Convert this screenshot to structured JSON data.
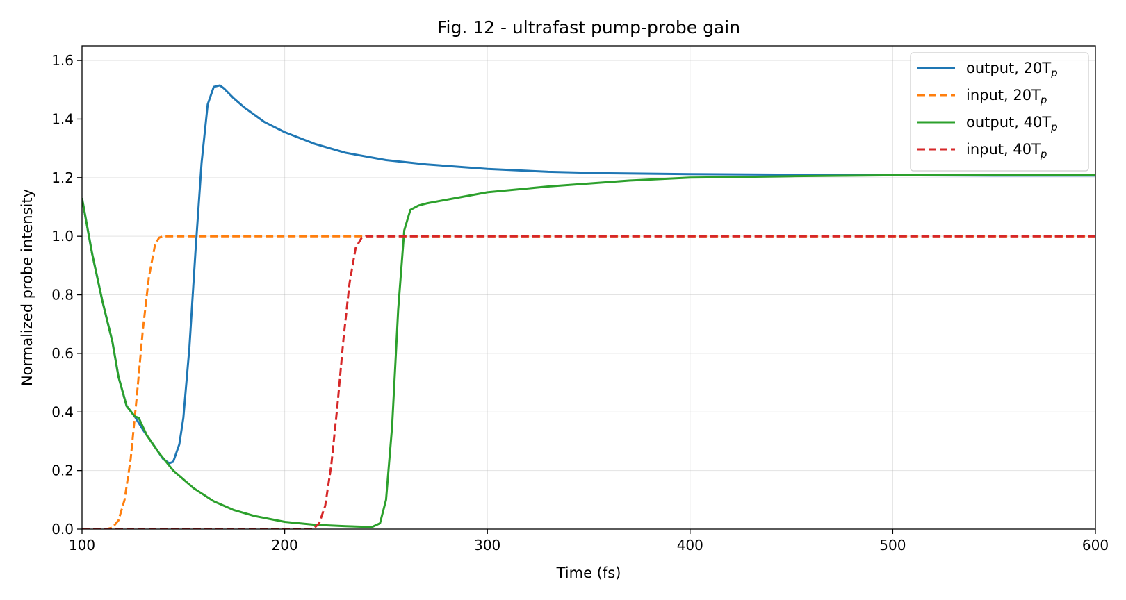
{
  "chart_data": {
    "type": "line",
    "title": "Fig. 12 - ultrafast pump-probe gain",
    "xlabel": "Time (fs)",
    "ylabel": "Normalized probe intensity",
    "xlim": [
      100,
      600
    ],
    "ylim": [
      0,
      1.65
    ],
    "xticks": [
      100,
      200,
      300,
      400,
      500,
      600
    ],
    "yticks": [
      0.0,
      0.2,
      0.4,
      0.6,
      0.8,
      1.0,
      1.2,
      1.4,
      1.6
    ],
    "xtick_labels": [
      "100",
      "200",
      "300",
      "400",
      "500",
      "600"
    ],
    "ytick_labels": [
      "0.0",
      "0.2",
      "0.4",
      "0.6",
      "0.8",
      "1.0",
      "1.2",
      "1.4",
      "1.6"
    ],
    "grid": true,
    "legend_position": "top-right",
    "series": [
      {
        "name": "output, 20T",
        "name_sub": "p",
        "color": "#1f77b4",
        "dash": "solid",
        "x": [
          100,
          105,
          110,
          115,
          118,
          122,
          126,
          130,
          135,
          140,
          143,
          145,
          148,
          150,
          153,
          156,
          159,
          162,
          165,
          168,
          170,
          175,
          180,
          190,
          200,
          215,
          230,
          250,
          270,
          300,
          330,
          360,
          400,
          450,
          500,
          550,
          600
        ],
        "y": [
          1.13,
          0.94,
          0.78,
          0.64,
          0.52,
          0.42,
          0.385,
          0.34,
          0.29,
          0.24,
          0.225,
          0.23,
          0.29,
          0.38,
          0.62,
          0.95,
          1.25,
          1.45,
          1.51,
          1.515,
          1.505,
          1.47,
          1.44,
          1.39,
          1.355,
          1.315,
          1.285,
          1.26,
          1.245,
          1.23,
          1.22,
          1.215,
          1.212,
          1.21,
          1.208,
          1.207,
          1.207
        ]
      },
      {
        "name": "input, 20T",
        "name_sub": "p",
        "color": "#ff7f0e",
        "dash": "dashed",
        "x": [
          100,
          112,
          115,
          118,
          121,
          124,
          127,
          130,
          133,
          136,
          138,
          140,
          150,
          200,
          250,
          300,
          400,
          500,
          600
        ],
        "y": [
          0,
          0,
          0.005,
          0.03,
          0.1,
          0.24,
          0.45,
          0.68,
          0.86,
          0.97,
          0.995,
          1.0,
          1.0,
          1.0,
          1.0,
          1.0,
          1.0,
          1.0,
          1.0
        ]
      },
      {
        "name": "output, 40T",
        "name_sub": "p",
        "color": "#2ca02c",
        "dash": "solid",
        "x": [
          100,
          105,
          110,
          115,
          118,
          122,
          126,
          128,
          132,
          138,
          145,
          155,
          165,
          175,
          185,
          200,
          215,
          230,
          243,
          247,
          250,
          253,
          256,
          259,
          262,
          266,
          270,
          280,
          300,
          330,
          370,
          400,
          450,
          500,
          550,
          600
        ],
        "y": [
          1.13,
          0.94,
          0.78,
          0.64,
          0.52,
          0.42,
          0.385,
          0.38,
          0.32,
          0.26,
          0.2,
          0.14,
          0.095,
          0.065,
          0.045,
          0.025,
          0.015,
          0.01,
          0.007,
          0.02,
          0.1,
          0.35,
          0.75,
          1.02,
          1.09,
          1.105,
          1.112,
          1.125,
          1.15,
          1.17,
          1.19,
          1.2,
          1.205,
          1.208,
          1.208,
          1.208
        ]
      },
      {
        "name": "input, 40T",
        "name_sub": "p",
        "color": "#d62728",
        "dash": "dashed",
        "x": [
          100,
          214,
          217,
          220,
          223,
          226,
          229,
          232,
          235,
          238,
          240,
          245,
          300,
          400,
          500,
          600
        ],
        "y": [
          0,
          0,
          0.02,
          0.08,
          0.22,
          0.42,
          0.65,
          0.84,
          0.96,
          0.995,
          1.0,
          1.0,
          1.0,
          1.0,
          1.0,
          1.0
        ]
      }
    ]
  }
}
